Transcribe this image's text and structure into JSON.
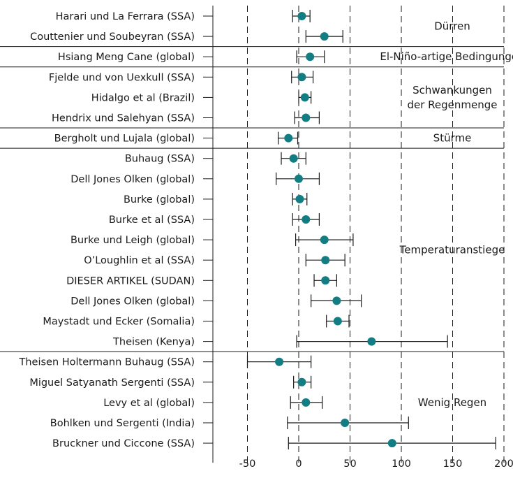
{
  "colors": {
    "marker": "#127e84",
    "line": "#1a1a1a",
    "grid": "#1a1a1a"
  },
  "chart_data": {
    "type": "scatter",
    "title": "",
    "xlabel": "",
    "ylabel": "",
    "xlim": [
      -62,
      202
    ],
    "xticks": [
      -50,
      0,
      50,
      100,
      150,
      200
    ],
    "xtick_labels": [
      "-50",
      "0",
      "50",
      "100",
      "150",
      "200"
    ],
    "grid": "vertical dashed",
    "studies": [
      {
        "label": "Harari und La Ferrara (SSA)",
        "value": 3,
        "lo": -6,
        "hi": 11
      },
      {
        "label": "Couttenier und Soubeyran (SSA)",
        "value": 25,
        "lo": 7,
        "hi": 43
      },
      {
        "label": "Hsiang Meng Cane (global)",
        "value": 11,
        "lo": -2,
        "hi": 25
      },
      {
        "label": "Fjelde und von Uexkull (SSA)",
        "value": 3,
        "lo": -7,
        "hi": 14
      },
      {
        "label": "Hidalgo et al (Brazil)",
        "value": 6,
        "lo": 0,
        "hi": 12
      },
      {
        "label": "Hendrix und Salehyan (SSA)",
        "value": 7,
        "lo": -4,
        "hi": 20
      },
      {
        "label": "Bergholt und Lujala (global)",
        "value": -10,
        "lo": -20,
        "hi": -1
      },
      {
        "label": "Buhaug (SSA)",
        "value": -5,
        "lo": -17,
        "hi": 7
      },
      {
        "label": "Dell Jones Olken (global)",
        "value": 0,
        "lo": -22,
        "hi": 20
      },
      {
        "label": "Burke (global)",
        "value": 1,
        "lo": -6,
        "hi": 8
      },
      {
        "label": "Burke et al (SSA)",
        "value": 7,
        "lo": -6,
        "hi": 20
      },
      {
        "label": "Burke und Leigh (global)",
        "value": 25,
        "lo": -3,
        "hi": 53
      },
      {
        "label": "O’Loughlin et al (SSA)",
        "value": 26,
        "lo": 7,
        "hi": 45
      },
      {
        "label": "DIESER ARTIKEL (SUDAN)",
        "value": 26,
        "lo": 15,
        "hi": 37
      },
      {
        "label": "Dell Jones Olken (global)",
        "value": 37,
        "lo": 12,
        "hi": 61
      },
      {
        "label": "Maystadt und Ecker (Somalia)",
        "value": 38,
        "lo": 27,
        "hi": 49
      },
      {
        "label": "Theisen (Kenya)",
        "value": 71,
        "lo": -2,
        "hi": 145
      },
      {
        "label": "Theisen Holtermann Buhaug (SSA)",
        "value": -19,
        "lo": -50,
        "hi": 12
      },
      {
        "label": "Miguel Satyanath Sergenti (SSA)",
        "value": 3,
        "lo": -5,
        "hi": 12
      },
      {
        "label": "Levy et al (global)",
        "value": 7,
        "lo": -8,
        "hi": 23
      },
      {
        "label": "Bohlken und Sergenti (India)",
        "value": 45,
        "lo": -11,
        "hi": 107
      },
      {
        "label": "Bruckner und Ciccone (SSA)",
        "value": 91,
        "lo": -10,
        "hi": 192
      }
    ],
    "groups": [
      {
        "name": "Dürren",
        "lines": [
          "Dürren"
        ],
        "start": 0,
        "end": 1
      },
      {
        "name": "El-Niño-artige Bedingungen",
        "lines": [
          "El-Niño-artige Bedingungen"
        ],
        "start": 2,
        "end": 2
      },
      {
        "name": "Schwankungen der Regenmenge",
        "lines": [
          "Schwankungen",
          "der Regenmenge"
        ],
        "start": 3,
        "end": 5
      },
      {
        "name": "Stürme",
        "lines": [
          "Stürme"
        ],
        "start": 6,
        "end": 6
      },
      {
        "name": "Temperaturanstiege",
        "lines": [
          "Temperaturanstiege"
        ],
        "start": 7,
        "end": 16
      },
      {
        "name": "Wenig Regen",
        "lines": [
          "Wenig Regen"
        ],
        "start": 17,
        "end": 21
      }
    ]
  }
}
